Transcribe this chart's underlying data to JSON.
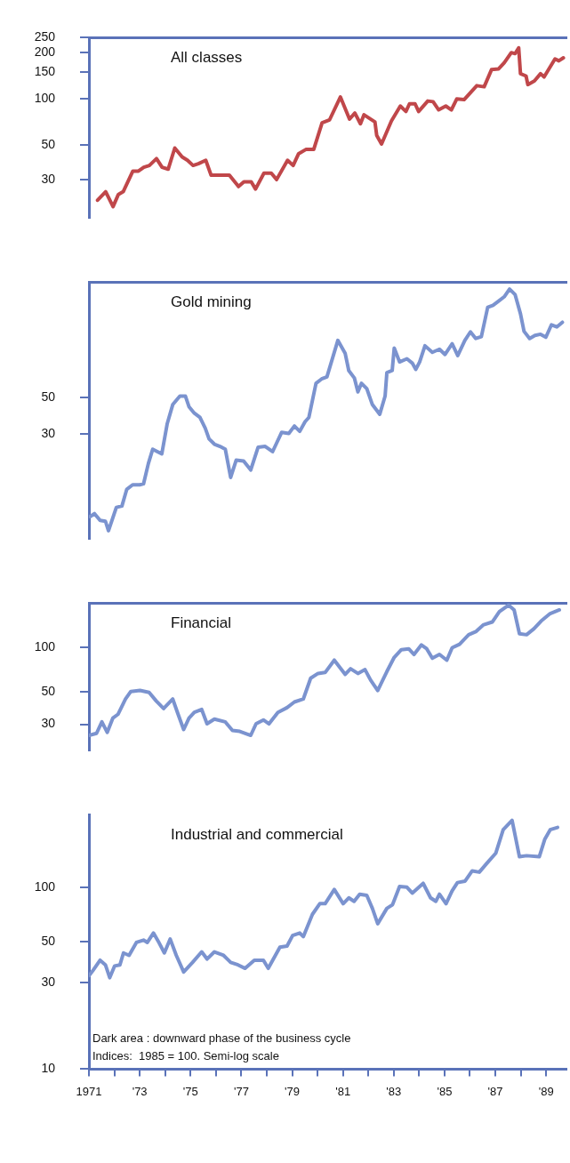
{
  "chart_data": [
    {
      "type": "line",
      "series": [
        {
          "name": "All classes",
          "color": "#c0474a",
          "x": [
            1971.34,
            1971.66,
            1971.95,
            1972.16,
            1972.35,
            1972.73,
            1972.95,
            1973.16,
            1973.38,
            1973.66,
            1973.88,
            1974.12,
            1974.38,
            1974.67,
            1974.88,
            1975.1,
            1975.31,
            1975.6,
            1975.81,
            1976.1,
            1976.53,
            1976.89,
            1977.1,
            1977.39,
            1977.56,
            1977.89,
            1978.18,
            1978.39,
            1978.82,
            1979.04,
            1979.25,
            1979.54,
            1979.85,
            1980.18,
            1980.47,
            1980.9,
            1981.26,
            1981.47,
            1981.69,
            1981.83,
            1982.26,
            1982.33,
            1982.52,
            1982.91,
            1983.26,
            1983.48,
            1983.62,
            1983.84,
            1983.98,
            1984.34,
            1984.55,
            1984.77,
            1985.05,
            1985.27,
            1985.48,
            1985.77,
            1986.27,
            1986.56,
            1986.85,
            1987.13,
            1987.35,
            1987.63,
            1987.78,
            1987.92,
            1987.99,
            1988.21,
            1988.28,
            1988.54,
            1988.78,
            1988.92,
            1989.35,
            1989.5,
            1989.68
          ],
          "values": [
            22,
            25,
            20,
            24,
            25,
            34,
            34,
            36,
            37,
            41,
            36,
            35,
            48,
            42,
            40,
            37,
            38,
            40,
            32,
            32,
            32,
            27,
            29,
            29,
            26,
            33,
            33,
            30,
            40,
            37,
            44,
            47,
            47,
            70,
            73,
            103,
            74,
            81,
            69,
            79,
            71,
            58,
            51,
            72,
            90,
            83,
            93,
            93,
            83,
            97,
            96,
            85,
            90,
            85,
            100,
            99,
            122,
            120,
            155,
            157,
            172,
            200,
            197,
            215,
            146,
            141,
            124,
            131,
            146,
            139,
            182,
            177,
            185
          ]
        }
      ],
      "xlim": [
        1971,
        1989.8
      ],
      "ylim": [
        17,
        250
      ],
      "yticks": [
        30,
        50,
        100,
        150,
        200,
        250
      ],
      "log": true,
      "tick_labels": "y"
    },
    {
      "type": "line",
      "series": [
        {
          "name": "Gold mining",
          "color": "#7b93cf",
          "x": [
            1971.05,
            1971.22,
            1971.44,
            1971.65,
            1971.77,
            1972.08,
            1972.3,
            1972.49,
            1972.72,
            1973.0,
            1973.15,
            1973.34,
            1973.51,
            1973.87,
            1974.08,
            1974.3,
            1974.44,
            1974.58,
            1974.8,
            1974.94,
            1975.15,
            1975.37,
            1975.58,
            1975.73,
            1975.94,
            1976.16,
            1976.37,
            1976.58,
            1976.8,
            1977.09,
            1977.37,
            1977.66,
            1977.94,
            1978.23,
            1978.59,
            1978.87,
            1979.09,
            1979.3,
            1979.51,
            1979.66,
            1979.94,
            1980.16,
            1980.37,
            1980.8,
            1981.09,
            1981.23,
            1981.45,
            1981.59,
            1981.73,
            1981.94,
            1982.16,
            1982.45,
            1982.66,
            1982.73,
            1982.94,
            1983.02,
            1983.23,
            1983.52,
            1983.73,
            1983.87,
            1984.02,
            1984.23,
            1984.52,
            1984.8,
            1985.02,
            1985.3,
            1985.52,
            1985.8,
            1986.02,
            1986.23,
            1986.45,
            1986.7,
            1986.91,
            1987.13,
            1987.35,
            1987.56,
            1987.78,
            1987.99,
            1988.13,
            1988.35,
            1988.56,
            1988.78,
            1988.99,
            1989.21,
            1989.42,
            1989.64
          ],
          "values": [
            9.5,
            9.9,
            9.0,
            8.9,
            7.8,
            10.8,
            11,
            13.9,
            14.8,
            14.8,
            15,
            19.9,
            24.3,
            22.8,
            34.6,
            45.3,
            48.1,
            51,
            51,
            44,
            40.2,
            37.9,
            32.6,
            28.1,
            26.1,
            25.3,
            24.3,
            16.4,
            20.9,
            20.6,
            18.2,
            25,
            25.3,
            23.5,
            30.8,
            30.3,
            33.6,
            31.2,
            35.7,
            37.9,
            61,
            64.8,
            66.7,
            111,
            92.5,
            72.9,
            65.7,
            54.1,
            61,
            56.6,
            45.3,
            39.6,
            51,
            70.8,
            72.9,
            99.8,
            82.2,
            85.9,
            80.9,
            74.1,
            82.2,
            103,
            94,
            98.2,
            91.2,
            106,
            89.9,
            111,
            125,
            114,
            117,
            176,
            181,
            192,
            204,
            227,
            210,
            161,
            126,
            114,
            119,
            121,
            116,
            138,
            134,
            143
          ]
        }
      ],
      "xlim": [
        1971,
        1989.8
      ],
      "ylim": [
        7,
        250
      ],
      "yticks": [
        30,
        50
      ],
      "log": true,
      "tick_labels": "y"
    },
    {
      "type": "line",
      "series": [
        {
          "name": "Financial",
          "color": "#7b93cf",
          "x": [
            1971.01,
            1971.3,
            1971.51,
            1971.72,
            1971.94,
            1972.15,
            1972.44,
            1972.65,
            1973.01,
            1973.37,
            1973.65,
            1973.94,
            1974.3,
            1974.51,
            1974.73,
            1974.94,
            1975.15,
            1975.44,
            1975.65,
            1975.94,
            1976.37,
            1976.65,
            1976.94,
            1977.37,
            1977.58,
            1977.87,
            1978.09,
            1978.44,
            1978.8,
            1979.09,
            1979.44,
            1979.73,
            1980.02,
            1980.3,
            1980.66,
            1981.09,
            1981.3,
            1981.59,
            1981.87,
            1982.09,
            1982.37,
            1982.73,
            1983.02,
            1983.3,
            1983.59,
            1983.8,
            1984.09,
            1984.3,
            1984.52,
            1984.8,
            1985.09,
            1985.3,
            1985.59,
            1985.95,
            1986.23,
            1986.52,
            1986.88,
            1987.16,
            1987.52,
            1987.74,
            1987.95,
            1988.23,
            1988.52,
            1988.8,
            1989.16,
            1989.52
          ],
          "values": [
            25.2,
            26,
            31.1,
            26.4,
            33,
            35.1,
            44.5,
            50.1,
            50.9,
            49.4,
            43.2,
            38.3,
            44.5,
            35.1,
            27.6,
            33,
            36.1,
            37.8,
            30.2,
            32.5,
            31.1,
            27.2,
            26.8,
            25.2,
            30.2,
            32.1,
            30.2,
            36.1,
            38.9,
            42.5,
            44.5,
            61.7,
            66.5,
            67.5,
            81.9,
            65.5,
            71.6,
            66.5,
            70.6,
            59.9,
            50.9,
            68.5,
            85.6,
            96.5,
            97.9,
            89.6,
            104,
            97.9,
            84.4,
            89.6,
            81.9,
            99.4,
            105,
            122,
            128,
            142,
            149,
            175,
            194,
            180,
            124,
            122,
            134,
            151,
            170,
            180
          ]
        }
      ],
      "xlim": [
        1971,
        1989.8
      ],
      "ylim": [
        20,
        200
      ],
      "yticks": [
        30,
        50,
        100
      ],
      "log": true,
      "tick_labels": "y"
    },
    {
      "type": "line",
      "series": [
        {
          "name": "Industrial and commercial",
          "color": "#7b93cf",
          "x": [
            1971.01,
            1971.15,
            1971.44,
            1971.65,
            1971.82,
            1972.01,
            1972.22,
            1972.36,
            1972.58,
            1972.87,
            1973.15,
            1973.3,
            1973.54,
            1973.73,
            1973.97,
            1974.2,
            1974.44,
            1974.73,
            1975.08,
            1975.44,
            1975.65,
            1975.94,
            1976.3,
            1976.58,
            1976.87,
            1977.15,
            1977.51,
            1977.87,
            1978.06,
            1978.52,
            1978.8,
            1979.02,
            1979.3,
            1979.44,
            1979.8,
            1980.09,
            1980.3,
            1980.66,
            1981.01,
            1981.23,
            1981.44,
            1981.66,
            1981.94,
            1982.16,
            1982.37,
            1982.73,
            1982.95,
            1983.23,
            1983.52,
            1983.73,
            1984.16,
            1984.45,
            1984.66,
            1984.8,
            1985.06,
            1985.3,
            1985.51,
            1985.81,
            1986.09,
            1986.37,
            1986.66,
            1987.02,
            1987.31,
            1987.66,
            1987.95,
            1988.23,
            1988.73,
            1988.95,
            1989.16,
            1989.45
          ],
          "values": [
            32.7,
            34.7,
            39.7,
            37.4,
            31.8,
            36.9,
            37.4,
            43.5,
            42.2,
            49.7,
            51.2,
            49.7,
            56,
            50.4,
            43.5,
            51.9,
            42.2,
            34.2,
            38.6,
            44.1,
            40.3,
            44.1,
            42.2,
            38.6,
            37.4,
            35.8,
            39.7,
            39.7,
            35.8,
            46.8,
            47.5,
            54.3,
            56,
            53.5,
            71,
            81.2,
            81.2,
            97.1,
            81.2,
            87.4,
            83.6,
            91.5,
            90.1,
            76.5,
            63,
            76.5,
            80,
            101,
            100,
            92.8,
            105,
            87.4,
            83.6,
            91.5,
            81.2,
            95.6,
            106,
            108,
            123,
            121,
            135,
            154,
            207,
            233,
            147,
            149,
            147,
            184,
            207,
            213
          ]
        }
      ],
      "xlim": [
        1971,
        1989.8
      ],
      "xticks": [
        {
          "value": 1971,
          "label": "1971"
        },
        {
          "value": 1972,
          "label": null
        },
        {
          "value": 1973,
          "label": "'73"
        },
        {
          "value": 1974,
          "label": null
        },
        {
          "value": 1975,
          "label": "'75"
        },
        {
          "value": 1976,
          "label": null
        },
        {
          "value": 1977,
          "label": "'77"
        },
        {
          "value": 1978,
          "label": null
        },
        {
          "value": 1979,
          "label": "'79"
        },
        {
          "value": 1980,
          "label": null
        },
        {
          "value": 1981,
          "label": "'81"
        },
        {
          "value": 1982,
          "label": null
        },
        {
          "value": 1983,
          "label": "'83"
        },
        {
          "value": 1984,
          "label": null
        },
        {
          "value": 1985,
          "label": "'85"
        },
        {
          "value": 1986,
          "label": null
        },
        {
          "value": 1987,
          "label": "'87"
        },
        {
          "value": 1988,
          "label": null
        },
        {
          "value": 1989,
          "label": "'89"
        }
      ],
      "ylim": [
        10,
        250
      ],
      "yticks": [
        10,
        30,
        50,
        100
      ],
      "log": true,
      "annotations": [
        "Dark area : downward phase of the business cycle",
        "Indices:  1985 = 100. Semi-log scale"
      ]
    }
  ]
}
